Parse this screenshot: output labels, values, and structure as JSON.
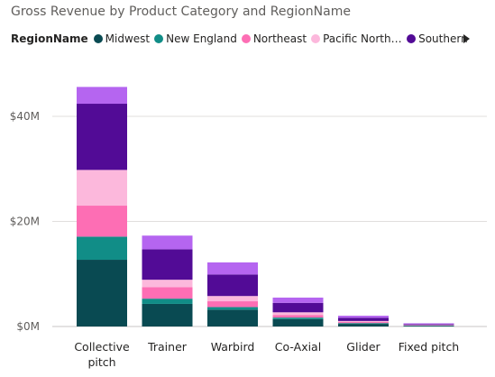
{
  "chart_data": {
    "type": "bar",
    "stacked": true,
    "title": "Gross Revenue by Product Category and RegionName",
    "legend_title": "RegionName",
    "legend_placement": "top",
    "xlabel": "",
    "ylabel": "",
    "ylim": [
      0,
      47
    ],
    "y_ticks": [
      {
        "value": 0,
        "label": "$0M"
      },
      {
        "value": 20,
        "label": "$20M"
      },
      {
        "value": 40,
        "label": "$40M"
      }
    ],
    "grid": true,
    "categories": [
      "Collective pitch",
      "Trainer",
      "Warbird",
      "Co-Axial",
      "Glider",
      "Fixed pitch"
    ],
    "legend_labels": [
      "Midwest",
      "New England",
      "Northeast",
      "Pacific Northw...",
      "Southern"
    ],
    "series": [
      {
        "name": "Midwest",
        "color": "#094a52",
        "values": [
          12.7,
          4.3,
          3.2,
          1.4,
          0.5,
          0.15
        ]
      },
      {
        "name": "New England",
        "color": "#118d87",
        "values": [
          4.4,
          1.0,
          0.5,
          0.3,
          0.15,
          0.05
        ]
      },
      {
        "name": "Northeast",
        "color": "#fd6eb4",
        "values": [
          5.9,
          2.2,
          1.1,
          0.5,
          0.2,
          0.05
        ]
      },
      {
        "name": "Pacific Northwest",
        "color": "#fcb8dc",
        "values": [
          6.8,
          1.4,
          1.0,
          0.5,
          0.2,
          0.05
        ]
      },
      {
        "name": "Southern",
        "color": "#520b96",
        "values": [
          12.6,
          5.8,
          4.1,
          1.8,
          0.6,
          0.15
        ]
      },
      {
        "name": "",
        "color": "#b565f0",
        "values": [
          3.2,
          2.6,
          2.3,
          1.0,
          0.4,
          0.15
        ]
      }
    ]
  }
}
